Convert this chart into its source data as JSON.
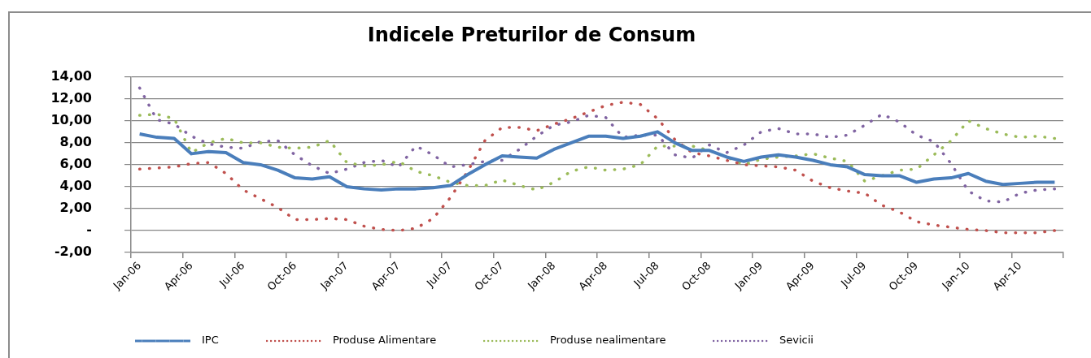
{
  "chart_data": {
    "type": "line",
    "title": "Indicele Preturilor de Consum",
    "categories": [
      "Jan-06",
      null,
      null,
      "Apr-06",
      null,
      null,
      "Jul-06",
      null,
      null,
      "Oct-06",
      null,
      null,
      "Jan-07",
      null,
      null,
      "Apr-07",
      null,
      null,
      "Jul-07",
      null,
      null,
      "Oct-07",
      null,
      null,
      "Jan-08",
      null,
      null,
      "Apr-08",
      null,
      null,
      "Jul-08",
      null,
      null,
      "Oct-08",
      null,
      null,
      "Jan-09",
      null,
      null,
      "Apr-09",
      null,
      null,
      "Jul-09",
      null,
      null,
      "Oct-09",
      null,
      null,
      "Jan-10",
      null,
      null,
      "Apr-10",
      null,
      null
    ],
    "series": [
      {
        "name": "IPC",
        "color": "#4a7ebb",
        "line_style": "solid",
        "values": [
          8.8,
          8.5,
          8.4,
          7.0,
          7.2,
          7.1,
          6.2,
          6.0,
          5.5,
          4.8,
          4.7,
          4.9,
          4.0,
          3.8,
          3.7,
          3.8,
          3.8,
          3.9,
          4.1,
          5.1,
          6.0,
          6.8,
          6.7,
          6.6,
          7.4,
          8.0,
          8.6,
          8.6,
          8.4,
          8.6,
          9.0,
          8.0,
          7.3,
          7.3,
          6.7,
          6.3,
          6.7,
          6.9,
          6.7,
          6.4,
          6.0,
          5.8,
          5.1,
          5.0,
          5.0,
          4.4,
          4.7,
          4.8,
          5.2,
          4.5,
          4.2,
          4.3,
          4.4,
          4.4
        ]
      },
      {
        "name": "Produse Alimentare",
        "color": "#c0504d",
        "line_style": "dotted",
        "values": [
          5.6,
          5.7,
          5.8,
          6.1,
          6.2,
          5.2,
          3.7,
          2.9,
          2.1,
          1.0,
          1.0,
          1.1,
          1.0,
          0.4,
          0.1,
          0.0,
          0.2,
          1.1,
          3.0,
          5.4,
          8.2,
          9.4,
          9.4,
          9.1,
          9.7,
          10.2,
          10.8,
          11.4,
          11.7,
          11.5,
          10.2,
          8.3,
          7.1,
          6.8,
          6.4,
          6.0,
          5.9,
          5.8,
          5.5,
          4.5,
          3.9,
          3.6,
          3.4,
          2.3,
          1.7,
          0.8,
          0.5,
          0.3,
          0.1,
          0.0,
          -0.2,
          -0.2,
          -0.2,
          0.0
        ]
      },
      {
        "name": "Produse nealimentare",
        "color": "#9bbb59",
        "line_style": "dotted",
        "values": [
          10.5,
          10.6,
          10.2,
          7.1,
          8.0,
          8.4,
          8.0,
          8.0,
          7.6,
          7.5,
          7.6,
          8.2,
          6.2,
          5.9,
          6.0,
          6.3,
          5.4,
          5.0,
          4.4,
          4.1,
          4.1,
          4.6,
          4.1,
          3.7,
          4.4,
          5.4,
          5.8,
          5.5,
          5.6,
          6.0,
          7.7,
          7.7,
          7.7,
          7.3,
          6.7,
          6.0,
          6.5,
          6.7,
          6.8,
          7.0,
          6.6,
          6.3,
          4.5,
          5.0,
          5.5,
          5.6,
          6.9,
          8.2,
          10.0,
          9.3,
          8.8,
          8.5,
          8.6,
          8.4
        ]
      },
      {
        "name": "Sevicii",
        "color": "#8064a2",
        "line_style": "dotted",
        "values": [
          13.0,
          10.1,
          9.7,
          8.6,
          7.9,
          7.6,
          7.5,
          8.1,
          8.2,
          6.9,
          5.9,
          5.2,
          5.6,
          6.2,
          6.4,
          5.8,
          7.7,
          6.9,
          5.8,
          6.0,
          6.3,
          6.4,
          7.4,
          8.6,
          9.6,
          9.9,
          10.5,
          10.3,
          8.5,
          8.7,
          8.7,
          6.9,
          6.6,
          7.8,
          7.1,
          7.8,
          9.0,
          9.3,
          8.8,
          8.8,
          8.5,
          8.7,
          9.6,
          10.6,
          9.9,
          8.7,
          8.1,
          6.1,
          3.6,
          2.7,
          2.6,
          3.4,
          3.7,
          3.8
        ]
      }
    ],
    "ylim": [
      -2,
      14
    ],
    "yticks": [
      {
        "value": -2,
        "label": "-2,00"
      },
      {
        "value": 0,
        "label": "-"
      },
      {
        "value": 2,
        "label": "2,00"
      },
      {
        "value": 4,
        "label": "4,00"
      },
      {
        "value": 6,
        "label": "6,00"
      },
      {
        "value": 8,
        "label": "8,00"
      },
      {
        "value": 10,
        "label": "10,00"
      },
      {
        "value": 12,
        "label": "12,00"
      },
      {
        "value": 14,
        "label": "14,00"
      }
    ],
    "grid": "y",
    "legend": "bottom",
    "marker": "none"
  }
}
